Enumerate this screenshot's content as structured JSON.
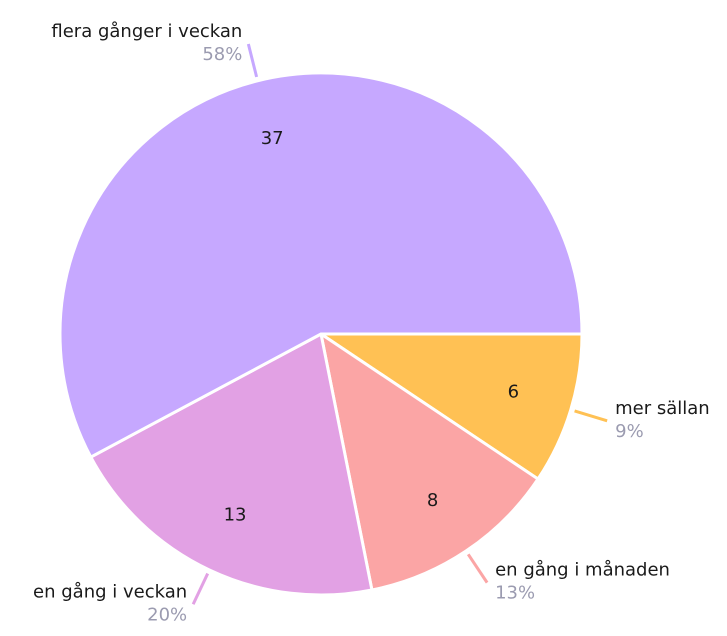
{
  "chart_data": {
    "type": "pie",
    "categories": [
      "mer sällan",
      "en gång i månaden",
      "en gång i veckan",
      "flera gånger i veckan"
    ],
    "values": [
      6,
      8,
      13,
      37
    ],
    "percent_labels": [
      "9%",
      "13%",
      "20%",
      "58%"
    ],
    "colors": [
      "#ffc154",
      "#fba5a5",
      "#e2a1e4",
      "#c6a8ff"
    ]
  }
}
